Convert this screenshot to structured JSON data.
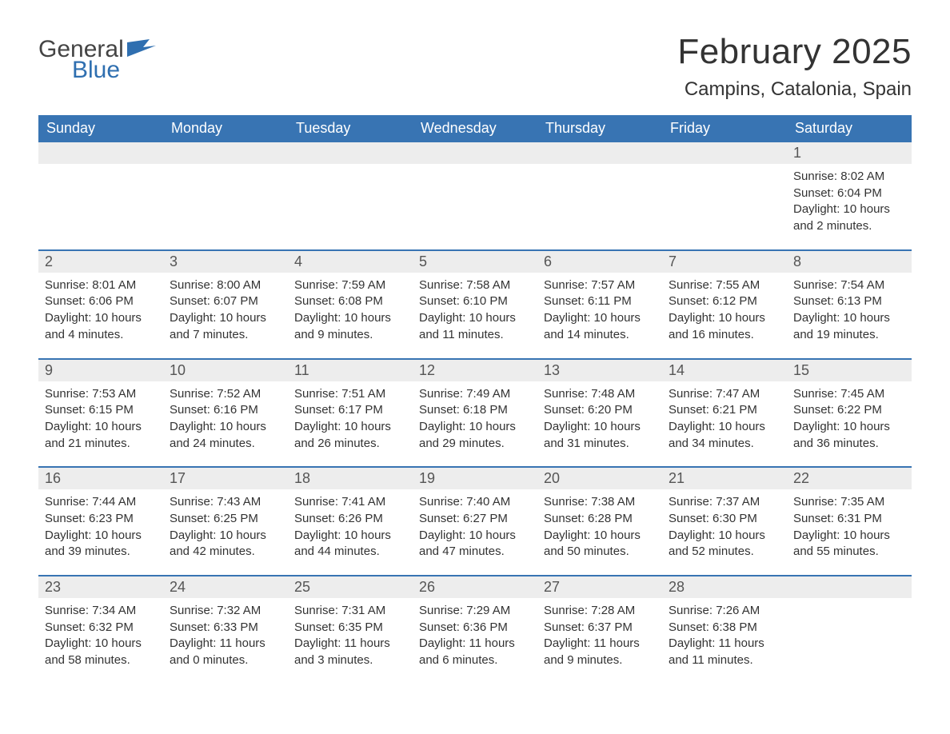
{
  "brand": {
    "part1": "General",
    "part2": "Blue",
    "text_color": "#444444",
    "accent_color": "#2f6fb0"
  },
  "title": "February 2025",
  "location": "Campins, Catalonia, Spain",
  "colors": {
    "header_bg": "#3874b3",
    "header_text": "#ffffff",
    "daynum_bg": "#ededed",
    "week_border": "#3874b3",
    "body_text": "#333333"
  },
  "fonts": {
    "title_size_pt": 33,
    "location_size_pt": 18,
    "dow_size_pt": 14,
    "daynum_size_pt": 14,
    "detail_size_pt": 11
  },
  "days_of_week": [
    "Sunday",
    "Monday",
    "Tuesday",
    "Wednesday",
    "Thursday",
    "Friday",
    "Saturday"
  ],
  "weeks": [
    [
      {
        "empty": true
      },
      {
        "empty": true
      },
      {
        "empty": true
      },
      {
        "empty": true
      },
      {
        "empty": true
      },
      {
        "empty": true
      },
      {
        "num": "1",
        "sunrise": "Sunrise: 8:02 AM",
        "sunset": "Sunset: 6:04 PM",
        "daylight1": "Daylight: 10 hours",
        "daylight2": "and 2 minutes."
      }
    ],
    [
      {
        "num": "2",
        "sunrise": "Sunrise: 8:01 AM",
        "sunset": "Sunset: 6:06 PM",
        "daylight1": "Daylight: 10 hours",
        "daylight2": "and 4 minutes."
      },
      {
        "num": "3",
        "sunrise": "Sunrise: 8:00 AM",
        "sunset": "Sunset: 6:07 PM",
        "daylight1": "Daylight: 10 hours",
        "daylight2": "and 7 minutes."
      },
      {
        "num": "4",
        "sunrise": "Sunrise: 7:59 AM",
        "sunset": "Sunset: 6:08 PM",
        "daylight1": "Daylight: 10 hours",
        "daylight2": "and 9 minutes."
      },
      {
        "num": "5",
        "sunrise": "Sunrise: 7:58 AM",
        "sunset": "Sunset: 6:10 PM",
        "daylight1": "Daylight: 10 hours",
        "daylight2": "and 11 minutes."
      },
      {
        "num": "6",
        "sunrise": "Sunrise: 7:57 AM",
        "sunset": "Sunset: 6:11 PM",
        "daylight1": "Daylight: 10 hours",
        "daylight2": "and 14 minutes."
      },
      {
        "num": "7",
        "sunrise": "Sunrise: 7:55 AM",
        "sunset": "Sunset: 6:12 PM",
        "daylight1": "Daylight: 10 hours",
        "daylight2": "and 16 minutes."
      },
      {
        "num": "8",
        "sunrise": "Sunrise: 7:54 AM",
        "sunset": "Sunset: 6:13 PM",
        "daylight1": "Daylight: 10 hours",
        "daylight2": "and 19 minutes."
      }
    ],
    [
      {
        "num": "9",
        "sunrise": "Sunrise: 7:53 AM",
        "sunset": "Sunset: 6:15 PM",
        "daylight1": "Daylight: 10 hours",
        "daylight2": "and 21 minutes."
      },
      {
        "num": "10",
        "sunrise": "Sunrise: 7:52 AM",
        "sunset": "Sunset: 6:16 PM",
        "daylight1": "Daylight: 10 hours",
        "daylight2": "and 24 minutes."
      },
      {
        "num": "11",
        "sunrise": "Sunrise: 7:51 AM",
        "sunset": "Sunset: 6:17 PM",
        "daylight1": "Daylight: 10 hours",
        "daylight2": "and 26 minutes."
      },
      {
        "num": "12",
        "sunrise": "Sunrise: 7:49 AM",
        "sunset": "Sunset: 6:18 PM",
        "daylight1": "Daylight: 10 hours",
        "daylight2": "and 29 minutes."
      },
      {
        "num": "13",
        "sunrise": "Sunrise: 7:48 AM",
        "sunset": "Sunset: 6:20 PM",
        "daylight1": "Daylight: 10 hours",
        "daylight2": "and 31 minutes."
      },
      {
        "num": "14",
        "sunrise": "Sunrise: 7:47 AM",
        "sunset": "Sunset: 6:21 PM",
        "daylight1": "Daylight: 10 hours",
        "daylight2": "and 34 minutes."
      },
      {
        "num": "15",
        "sunrise": "Sunrise: 7:45 AM",
        "sunset": "Sunset: 6:22 PM",
        "daylight1": "Daylight: 10 hours",
        "daylight2": "and 36 minutes."
      }
    ],
    [
      {
        "num": "16",
        "sunrise": "Sunrise: 7:44 AM",
        "sunset": "Sunset: 6:23 PM",
        "daylight1": "Daylight: 10 hours",
        "daylight2": "and 39 minutes."
      },
      {
        "num": "17",
        "sunrise": "Sunrise: 7:43 AM",
        "sunset": "Sunset: 6:25 PM",
        "daylight1": "Daylight: 10 hours",
        "daylight2": "and 42 minutes."
      },
      {
        "num": "18",
        "sunrise": "Sunrise: 7:41 AM",
        "sunset": "Sunset: 6:26 PM",
        "daylight1": "Daylight: 10 hours",
        "daylight2": "and 44 minutes."
      },
      {
        "num": "19",
        "sunrise": "Sunrise: 7:40 AM",
        "sunset": "Sunset: 6:27 PM",
        "daylight1": "Daylight: 10 hours",
        "daylight2": "and 47 minutes."
      },
      {
        "num": "20",
        "sunrise": "Sunrise: 7:38 AM",
        "sunset": "Sunset: 6:28 PM",
        "daylight1": "Daylight: 10 hours",
        "daylight2": "and 50 minutes."
      },
      {
        "num": "21",
        "sunrise": "Sunrise: 7:37 AM",
        "sunset": "Sunset: 6:30 PM",
        "daylight1": "Daylight: 10 hours",
        "daylight2": "and 52 minutes."
      },
      {
        "num": "22",
        "sunrise": "Sunrise: 7:35 AM",
        "sunset": "Sunset: 6:31 PM",
        "daylight1": "Daylight: 10 hours",
        "daylight2": "and 55 minutes."
      }
    ],
    [
      {
        "num": "23",
        "sunrise": "Sunrise: 7:34 AM",
        "sunset": "Sunset: 6:32 PM",
        "daylight1": "Daylight: 10 hours",
        "daylight2": "and 58 minutes."
      },
      {
        "num": "24",
        "sunrise": "Sunrise: 7:32 AM",
        "sunset": "Sunset: 6:33 PM",
        "daylight1": "Daylight: 11 hours",
        "daylight2": "and 0 minutes."
      },
      {
        "num": "25",
        "sunrise": "Sunrise: 7:31 AM",
        "sunset": "Sunset: 6:35 PM",
        "daylight1": "Daylight: 11 hours",
        "daylight2": "and 3 minutes."
      },
      {
        "num": "26",
        "sunrise": "Sunrise: 7:29 AM",
        "sunset": "Sunset: 6:36 PM",
        "daylight1": "Daylight: 11 hours",
        "daylight2": "and 6 minutes."
      },
      {
        "num": "27",
        "sunrise": "Sunrise: 7:28 AM",
        "sunset": "Sunset: 6:37 PM",
        "daylight1": "Daylight: 11 hours",
        "daylight2": "and 9 minutes."
      },
      {
        "num": "28",
        "sunrise": "Sunrise: 7:26 AM",
        "sunset": "Sunset: 6:38 PM",
        "daylight1": "Daylight: 11 hours",
        "daylight2": "and 11 minutes."
      },
      {
        "empty": true
      }
    ]
  ]
}
